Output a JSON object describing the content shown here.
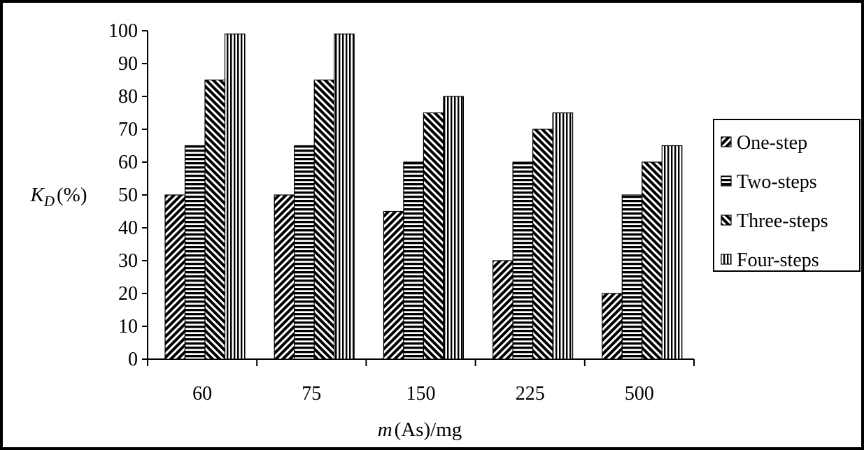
{
  "chart_data": {
    "type": "bar",
    "categories": [
      "60",
      "75",
      "150",
      "225",
      "500"
    ],
    "series": [
      {
        "name": "One-step",
        "pattern": "diagonal-forward",
        "values": [
          50,
          50,
          45,
          30,
          20
        ]
      },
      {
        "name": "Two-steps",
        "pattern": "horizontal",
        "values": [
          65,
          65,
          60,
          60,
          50
        ]
      },
      {
        "name": "Three-steps",
        "pattern": "diagonal-backward",
        "values": [
          85,
          85,
          75,
          70,
          60
        ]
      },
      {
        "name": "Four-steps",
        "pattern": "vertical",
        "values": [
          99,
          99,
          80,
          75,
          65
        ]
      }
    ],
    "title": "",
    "ylabel": {
      "symbol": "K",
      "subscript": "D",
      "unit": "(%)"
    },
    "xlabel": {
      "symbol": "m",
      "rest": "(As)/mg"
    },
    "ylim": [
      0,
      100
    ],
    "yticks": [
      "0",
      "10",
      "20",
      "30",
      "40",
      "50",
      "60",
      "70",
      "80",
      "90",
      "100"
    ],
    "grid": false,
    "legend_position": "right",
    "colors": {
      "ink": "#000000",
      "background": "#ffffff"
    }
  }
}
